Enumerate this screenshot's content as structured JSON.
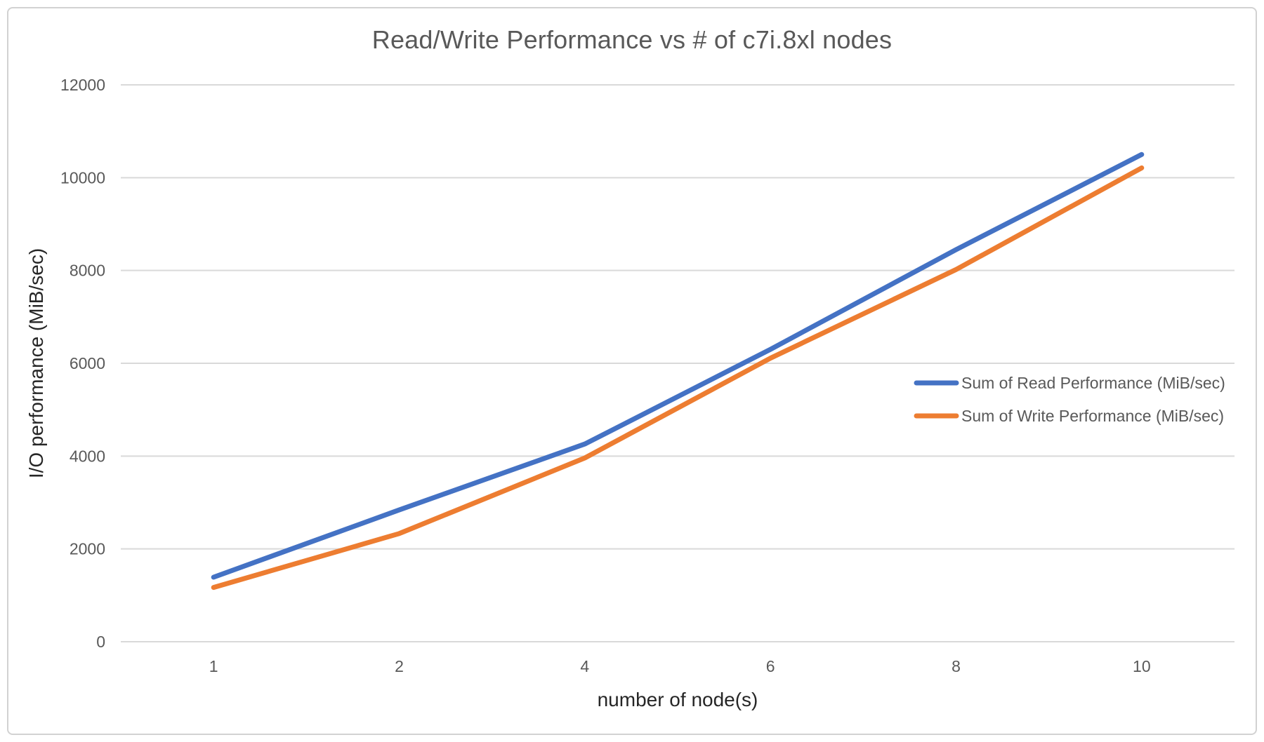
{
  "frame": {
    "background_color": "#ffffff",
    "border_color": "#d2d2d2"
  },
  "chart_data": {
    "type": "line",
    "title": "Read/Write Performance vs # of c7i.8xl nodes",
    "xlabel": "number of node(s)",
    "ylabel": "I/O performance (MiB/sec)",
    "categories": [
      "1",
      "2",
      "4",
      "6",
      "8",
      "10"
    ],
    "series": [
      {
        "name": "Sum of Read Performance (MiB/sec)",
        "color": "#4472C4",
        "values": [
          1390,
          2840,
          4260,
          6300,
          8450,
          10500
        ]
      },
      {
        "name": "Sum of Write Performance (MiB/sec)",
        "color": "#ED7D31",
        "values": [
          1170,
          2330,
          3960,
          6110,
          8020,
          10210
        ]
      }
    ],
    "ylim": [
      0,
      12000
    ],
    "yticks": [
      0,
      2000,
      4000,
      6000,
      8000,
      10000,
      12000
    ],
    "grid": true,
    "gridline_color": "#d9d9d9",
    "tick_label_color": "#595959",
    "title_color": "#595959",
    "axis_title_color": "#262626",
    "legend_position": "right-middle-inside",
    "line_width": 7
  }
}
